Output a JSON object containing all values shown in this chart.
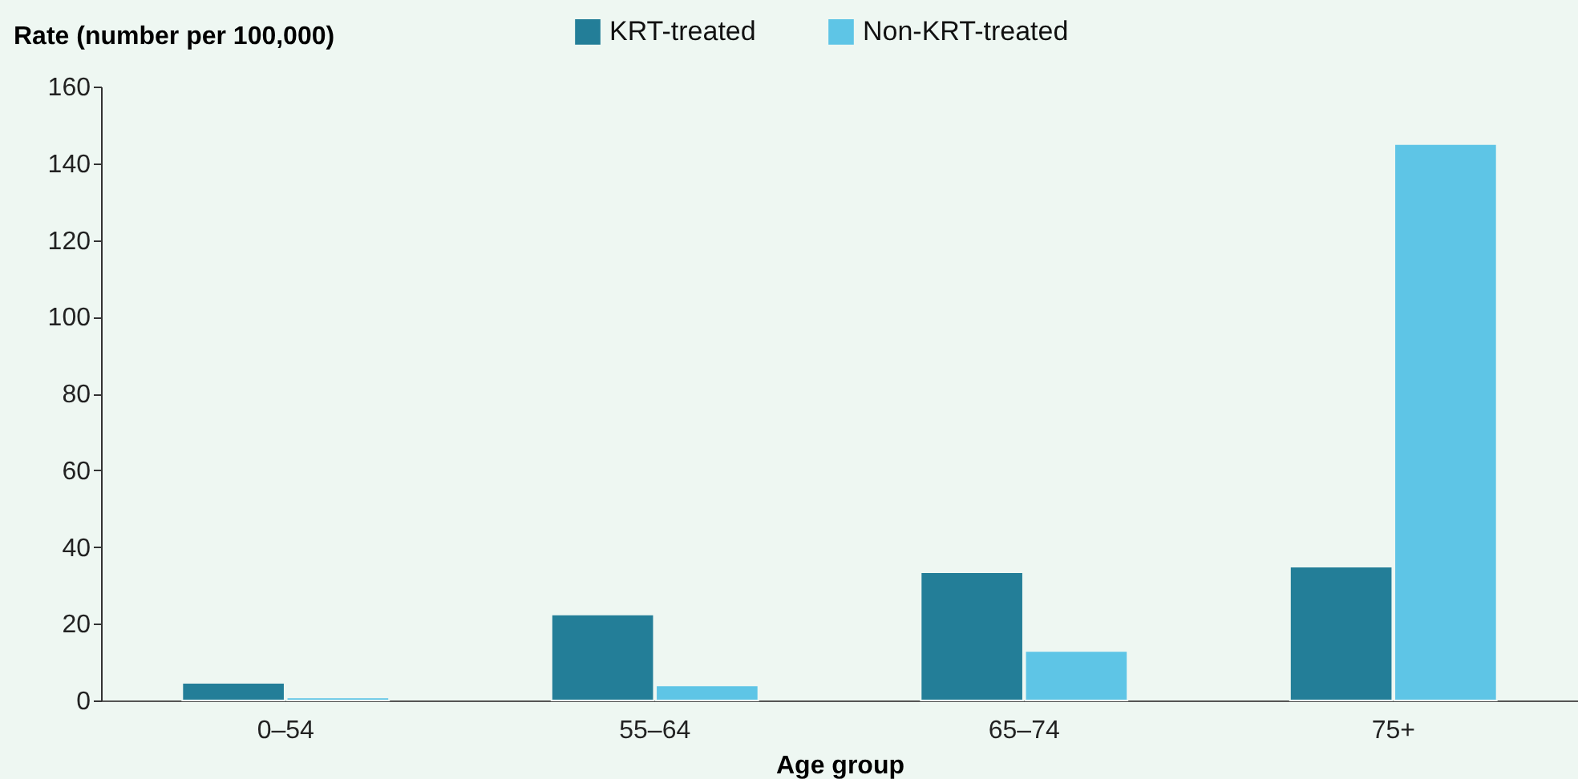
{
  "chart_data": {
    "type": "bar",
    "ylabel": "Rate (number per 100,000)",
    "xlabel": "Age group",
    "categories": [
      "0–54",
      "55–64",
      "65–74",
      "75+"
    ],
    "series": [
      {
        "name": "KRT-treated",
        "color": "#237e98",
        "values": [
          4.6,
          22.4,
          33.4,
          34.9
        ]
      },
      {
        "name": "Non-KRT-treated",
        "color": "#5ec5e6",
        "values": [
          0.8,
          3.9,
          12.9,
          145
        ]
      }
    ],
    "ylim": [
      0,
      160
    ],
    "yticks": [
      0,
      20,
      40,
      60,
      80,
      100,
      120,
      140,
      160
    ],
    "grid": false,
    "legend": "top"
  }
}
